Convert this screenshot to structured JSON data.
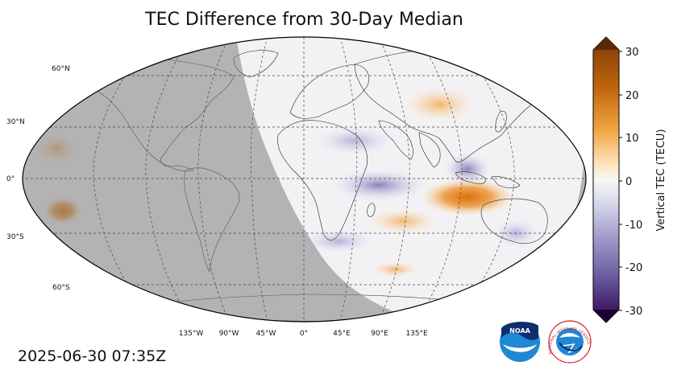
{
  "title": "TEC Difference from 30-Day Median",
  "timestamp": "2025-06-30 07:35Z",
  "map": {
    "projection": "Robinson (world)",
    "night_shading": "gray",
    "lat_labels": [
      "60°N",
      "30°N",
      "0°",
      "30°S",
      "60°S"
    ],
    "lon_labels": [
      "135°W",
      "90°W",
      "45°W",
      "0°",
      "45°E",
      "90°E",
      "135°E"
    ]
  },
  "colorbar": {
    "label": "Vertical TEC (TECU)",
    "ticks": [
      "30",
      "20",
      "10",
      "0",
      "-10",
      "-20",
      "-30"
    ],
    "min": -30,
    "max": 30,
    "colors": {
      "high": "#7f3b08",
      "positive": "#e08214",
      "neutral": "#f7f7f7",
      "negative": "#8073ac",
      "low": "#2d004b"
    }
  },
  "logos": {
    "noaa": "NOAA",
    "nws": "NATIONAL WEATHER SERVICE"
  }
}
